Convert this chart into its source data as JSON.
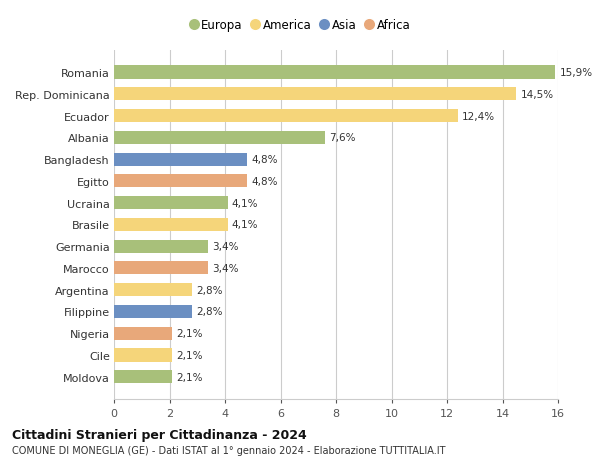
{
  "countries": [
    "Romania",
    "Rep. Dominicana",
    "Ecuador",
    "Albania",
    "Bangladesh",
    "Egitto",
    "Ucraina",
    "Brasile",
    "Germania",
    "Marocco",
    "Argentina",
    "Filippine",
    "Nigeria",
    "Cile",
    "Moldova"
  ],
  "values": [
    15.9,
    14.5,
    12.4,
    7.6,
    4.8,
    4.8,
    4.1,
    4.1,
    3.4,
    3.4,
    2.8,
    2.8,
    2.1,
    2.1,
    2.1
  ],
  "labels": [
    "15,9%",
    "14,5%",
    "12,4%",
    "7,6%",
    "4,8%",
    "4,8%",
    "4,1%",
    "4,1%",
    "3,4%",
    "3,4%",
    "2,8%",
    "2,8%",
    "2,1%",
    "2,1%",
    "2,1%"
  ],
  "continents": [
    "Europa",
    "America",
    "America",
    "Europa",
    "Asia",
    "Africa",
    "Europa",
    "America",
    "Europa",
    "Africa",
    "America",
    "Asia",
    "Africa",
    "America",
    "Europa"
  ],
  "colors": {
    "Europa": "#a8c07a",
    "America": "#f5d57a",
    "Asia": "#6b8fc2",
    "Africa": "#e8a87a"
  },
  "legend_order": [
    "Europa",
    "America",
    "Asia",
    "Africa"
  ],
  "title1": "Cittadini Stranieri per Cittadinanza - 2024",
  "title2": "COMUNE DI MONEGLIA (GE) - Dati ISTAT al 1° gennaio 2024 - Elaborazione TUTTITALIA.IT",
  "xlim": [
    0,
    16
  ],
  "xticks": [
    0,
    2,
    4,
    6,
    8,
    10,
    12,
    14,
    16
  ],
  "background_color": "#ffffff",
  "grid_color": "#cccccc",
  "bar_height": 0.6
}
